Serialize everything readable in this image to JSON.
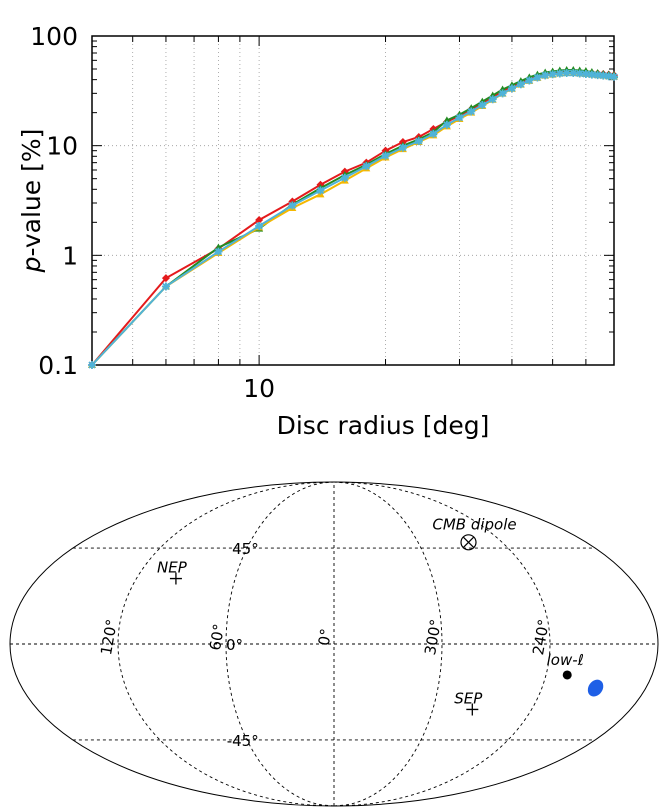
{
  "chart_data": [
    {
      "type": "line",
      "xlabel": "Disc radius [deg]",
      "ylabel_italic": "p",
      "ylabel_rest": "-value [%]",
      "xscale": "log",
      "yscale": "log",
      "xlim": [
        4,
        70
      ],
      "ylim": [
        0.1,
        100
      ],
      "x_tick_labels": [
        {
          "value": 10,
          "label": "10"
        }
      ],
      "y_tick_labels": [
        {
          "value": 0.1,
          "label": "0.1"
        },
        {
          "value": 1,
          "label": "1"
        },
        {
          "value": 10,
          "label": "10"
        },
        {
          "value": 100,
          "label": "100"
        }
      ],
      "grid": true,
      "series": [
        {
          "color": "#e41a1c",
          "marker": "diamond",
          "x": [
            4,
            6,
            8,
            10,
            12,
            14,
            16,
            18,
            20,
            22,
            24,
            26,
            28,
            30,
            32,
            34,
            36,
            38,
            40,
            42,
            44,
            46,
            48,
            50,
            52,
            54,
            56,
            58,
            60,
            62,
            64,
            66,
            68,
            70
          ],
          "y": [
            0.1,
            0.62,
            1.15,
            2.1,
            3.1,
            4.4,
            5.8,
            7.0,
            9.0,
            10.8,
            12.0,
            14.2,
            16.5,
            18.8,
            21.5,
            24.5,
            27.8,
            31.5,
            34.5,
            37.5,
            40.5,
            43.0,
            45.0,
            46.0,
            46.5,
            47.0,
            47.0,
            47.0,
            46.5,
            46.0,
            45.5,
            45.0,
            44.5,
            44.0
          ]
        },
        {
          "color": "#238b22",
          "marker": "triangle",
          "x": [
            4,
            6,
            8,
            10,
            12,
            14,
            16,
            18,
            20,
            22,
            24,
            26,
            28,
            30,
            32,
            34,
            36,
            38,
            40,
            42,
            44,
            46,
            48,
            50,
            52,
            54,
            56,
            58,
            60,
            62,
            64,
            66,
            68,
            70
          ],
          "y": [
            0.1,
            0.52,
            1.18,
            1.75,
            2.9,
            4.1,
            5.4,
            6.7,
            8.4,
            10.0,
            11.4,
            13.3,
            17.0,
            19.2,
            22.0,
            25.2,
            28.7,
            32.5,
            35.6,
            38.8,
            42.0,
            44.5,
            46.5,
            47.5,
            48.5,
            49.0,
            49.0,
            48.5,
            48.0,
            47.0,
            46.0,
            45.0,
            44.5,
            44.0
          ]
        },
        {
          "color": "#f5b800",
          "marker": "triangle",
          "x": [
            4,
            6,
            8,
            10,
            12,
            14,
            16,
            18,
            20,
            22,
            24,
            26,
            28,
            30,
            32,
            34,
            36,
            38,
            40,
            42,
            44,
            46,
            48,
            50,
            52,
            54,
            56,
            58,
            60,
            62,
            64,
            66,
            68,
            70
          ],
          "y": [
            0.1,
            0.52,
            1.05,
            1.8,
            2.7,
            3.6,
            4.8,
            6.2,
            7.8,
            9.3,
            10.8,
            12.4,
            15.0,
            17.5,
            20.0,
            23.0,
            26.2,
            29.8,
            33.0,
            36.0,
            39.0,
            41.5,
            43.5,
            44.5,
            45.5,
            46.0,
            46.0,
            45.5,
            45.0,
            44.5,
            44.0,
            43.5,
            43.0,
            42.5
          ]
        },
        {
          "color": "#4fb3d9",
          "marker": "star",
          "x": [
            4,
            6,
            8,
            10,
            12,
            14,
            16,
            18,
            20,
            22,
            24,
            26,
            28,
            30,
            32,
            34,
            36,
            38,
            40,
            42,
            44,
            46,
            48,
            50,
            52,
            54,
            56,
            58,
            60,
            62,
            64,
            66,
            68,
            70
          ],
          "y": [
            0.1,
            0.52,
            1.08,
            1.85,
            2.85,
            3.9,
            5.1,
            6.5,
            8.1,
            9.6,
            11.0,
            12.8,
            15.5,
            18.0,
            20.5,
            23.5,
            26.5,
            30.0,
            33.3,
            36.3,
            39.3,
            41.8,
            43.8,
            44.8,
            45.5,
            46.0,
            46.0,
            45.5,
            45.0,
            44.5,
            44.0,
            43.5,
            43.0,
            42.5
          ]
        }
      ]
    },
    {
      "type": "scatter",
      "projection": "mollweide",
      "lon_labels": [
        {
          "lon": 120,
          "label": "120°"
        },
        {
          "lon": 60,
          "label": "60°"
        },
        {
          "lon": 0,
          "label": "0°"
        },
        {
          "lon": 300,
          "label": "300°"
        },
        {
          "lon": 240,
          "label": "240°"
        }
      ],
      "lat_labels": [
        {
          "lat": 45,
          "label": "45°"
        },
        {
          "lat": 0,
          "label": "0°"
        },
        {
          "lat": -45,
          "label": "-45°"
        }
      ],
      "points": [
        {
          "name": "CMB dipole",
          "label": "CMB dipole",
          "lon": 264,
          "lat": 48,
          "marker": "circle-x",
          "color": "#000000"
        },
        {
          "name": "NEP",
          "label": "NEP",
          "lon": 96,
          "lat": 30,
          "marker": "plus",
          "color": "#000000"
        },
        {
          "name": "SEP",
          "label": "SEP",
          "lon": 276,
          "lat": -30,
          "marker": "plus",
          "color": "#000000"
        },
        {
          "name": "low-l",
          "label": "low-ℓ",
          "lon": 228,
          "lat": -14,
          "marker": "dot",
          "color": "#000000"
        },
        {
          "name": "blob",
          "label": "",
          "lon": 209,
          "lat": -20,
          "marker": "ellipse",
          "color": "#1e5fe6"
        }
      ]
    }
  ]
}
